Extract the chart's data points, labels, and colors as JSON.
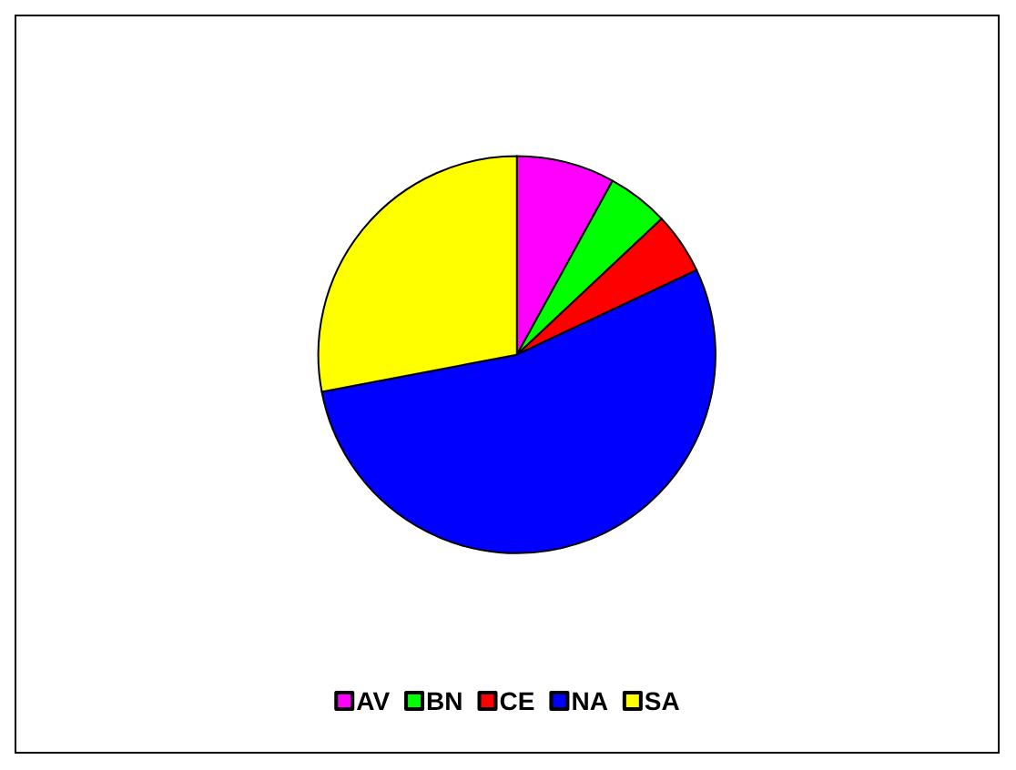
{
  "chart_data": {
    "type": "pie",
    "categories": [
      "AV",
      "BN",
      "CE",
      "NA",
      "SA"
    ],
    "values": [
      8,
      5,
      5,
      54,
      28
    ],
    "colors": [
      "#ff00ff",
      "#00ff00",
      "#ff0000",
      "#0000ff",
      "#ffff00"
    ],
    "legend": "bottom"
  }
}
